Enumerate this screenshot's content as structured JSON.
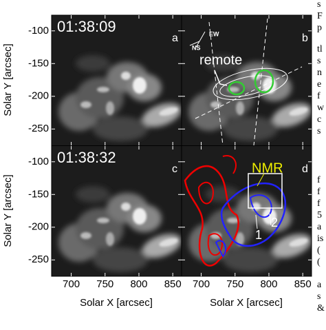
{
  "figure": {
    "x_label": "Solar X [arcsec]",
    "y_label": "Solar Y [arcsec]",
    "xlim": [
      671,
      863
    ],
    "ylim": [
      -275,
      -76
    ],
    "xticks": [
      700,
      750,
      800,
      850
    ],
    "yticks": [
      -100,
      -150,
      -200,
      -250
    ],
    "panels": [
      {
        "letter": "a",
        "time": "01:38:09"
      },
      {
        "letter": "b",
        "annotations": [
          "remote",
          "EW",
          "NS"
        ]
      },
      {
        "letter": "c",
        "time": "01:38:32"
      },
      {
        "letter": "d",
        "annotations": [
          "NMR",
          "1",
          "2"
        ]
      }
    ]
  },
  "side_text": [
    "s",
    "F",
    "p",
    "tl",
    "s",
    "n",
    "e",
    "f",
    "w",
    "c",
    "s",
    "f",
    "f",
    "f",
    "5",
    "a",
    "is",
    "(",
    "(",
    "a",
    "s",
    "&"
  ]
}
